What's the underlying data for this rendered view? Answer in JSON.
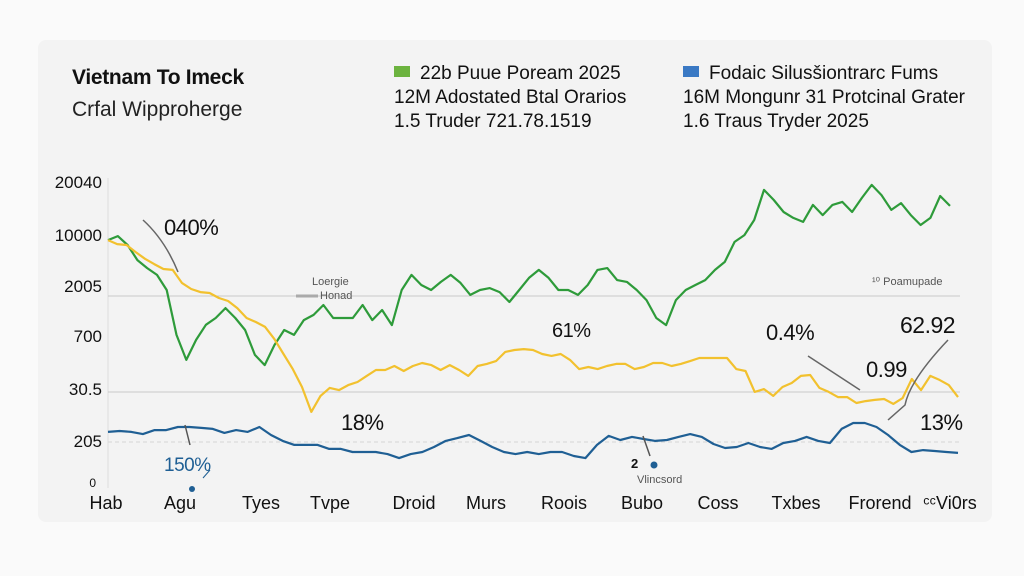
{
  "chart_data": {
    "type": "line",
    "title": "Vietnam To Imeck",
    "subtitle": "Crfal Wipproherge",
    "xlabel": "",
    "ylabel": "",
    "y_tick_labels": [
      "20040",
      "10000",
      "2005",
      "700",
      "30.5",
      "205",
      "0"
    ],
    "y_tick_positions": [
      95,
      80,
      63,
      48,
      30,
      14,
      0
    ],
    "ylim": [
      0,
      100
    ],
    "x_tick_labels": [
      "Hab",
      "Agu",
      "Tyes",
      "Tvpe",
      "Droid",
      "Murs",
      "Roois",
      "Bubo",
      "Coss",
      "Txbes",
      "Frorend",
      "ᶜᶜVi0rs"
    ],
    "grid": "horizontal reference lines at 2005, 30.5, 205",
    "legend_position": "top",
    "legend": [
      {
        "color": "#6cb33f",
        "lines": [
          "22b Puue Poream 2025",
          "12M Adostated Btal Orarios",
          "1.5 Truder 721.78.1519"
        ]
      },
      {
        "color": "#3a79c4",
        "lines": [
          "Fodaic Silusšiontrarc Fums",
          "16M Mongunr 31 Protcinal Grater",
          "1.6 Traus Tryder 2025"
        ]
      }
    ],
    "series": [
      {
        "name": "green",
        "color": "#2e9b3a",
        "values": [
          80.5,
          81.8,
          78.9,
          74,
          71.4,
          69.2,
          64.3,
          49.7,
          41.6,
          48.1,
          53,
          55.2,
          58.4,
          55.2,
          51.3,
          43.2,
          39.9,
          46.4,
          51.3,
          49.7,
          54.5,
          56.2,
          59.4,
          55.2,
          55.2,
          55.2,
          59.4,
          54.5,
          57.8,
          52.9,
          64.3,
          69.2,
          65.9,
          64.3,
          66.9,
          69.2,
          66.6,
          62.7,
          64.3,
          64.9,
          63.6,
          60.4,
          64.3,
          68.2,
          70.8,
          68.2,
          64.3,
          64.3,
          62.7,
          65.9,
          70.8,
          71.4,
          67.5,
          66.9,
          64.3,
          61,
          55.2,
          52.9,
          61,
          64.3,
          65.9,
          67.5,
          70.8,
          73.4,
          79.9,
          82.1,
          87,
          96.8,
          93.5,
          89.6,
          87.7,
          86.4,
          91.9,
          88.6,
          91.9,
          92.9,
          89.6,
          94.2,
          98.4,
          95.1,
          90.3,
          92.5,
          88.6,
          85.4,
          87.7,
          94.8,
          91.6
        ]
      },
      {
        "name": "yellow",
        "color": "#f2c12e",
        "values": [
          80.5,
          79.2,
          78.9,
          76.6,
          74.4,
          72.7,
          71.1,
          70.8,
          66.6,
          64.6,
          63.6,
          63.3,
          61.7,
          60.7,
          58.4,
          55.2,
          53.9,
          52.3,
          48.4,
          43.5,
          38.6,
          32.8,
          24.7,
          29.9,
          32.5,
          31.8,
          33.4,
          34.4,
          36.4,
          38.3,
          38.3,
          39.6,
          38,
          39.6,
          40.6,
          39.9,
          38.3,
          39.9,
          38.3,
          36.4,
          39.6,
          40.3,
          41.2,
          44.2,
          44.8,
          45.1,
          44.8,
          43.5,
          42.9,
          43.5,
          41.6,
          38.6,
          39.3,
          38.6,
          39.6,
          40.3,
          40.3,
          38.6,
          39.3,
          40.6,
          40.6,
          39.6,
          40.3,
          41.2,
          42.2,
          42.2,
          42.2,
          42.2,
          38.6,
          38,
          31.2,
          32.1,
          29.9,
          32.8,
          34.1,
          36.4,
          36.7,
          32.5,
          31.2,
          29.5,
          29.5,
          27.6,
          28.2,
          28.6,
          28.9,
          27.3,
          29.2,
          35.4,
          31.8,
          36.4,
          35.1,
          33.4,
          29.5
        ]
      },
      {
        "name": "blue",
        "color": "#1f5f94",
        "values": [
          18.2,
          18.5,
          18.2,
          17.5,
          18.8,
          18.8,
          19.8,
          19.8,
          19.5,
          19.2,
          17.9,
          18.8,
          18.2,
          19.8,
          17.2,
          15.3,
          14,
          14,
          14,
          12.7,
          12.7,
          11.7,
          11.7,
          11.7,
          11,
          9.7,
          11,
          11.7,
          13.3,
          15.3,
          16.2,
          17.2,
          15.3,
          13.3,
          11.7,
          11,
          11.7,
          11,
          11.7,
          11.7,
          10.4,
          9.7,
          14,
          16.9,
          15.6,
          16.6,
          15.9,
          15.3,
          15.6,
          16.6,
          17.5,
          16.6,
          14.3,
          13,
          13.3,
          14.6,
          13.3,
          12.7,
          14.6,
          15.3,
          16.6,
          15.3,
          14.6,
          19.2,
          21.1,
          21.1,
          19.8,
          17.2,
          14,
          11.7,
          12.3,
          12,
          11.7,
          11.4
        ]
      }
    ],
    "annotations": [
      {
        "text": "040%",
        "series": "green"
      },
      {
        "text": "18%",
        "series": "yellow"
      },
      {
        "text": "150%",
        "series": "blue"
      },
      {
        "text": "61%",
        "series": "yellow"
      },
      {
        "text": "0.4%",
        "series": "yellow"
      },
      {
        "text": "0.99",
        "series": "yellow"
      },
      {
        "text": "62.92",
        "series": "blue"
      },
      {
        "text": "13%",
        "series": "blue"
      },
      {
        "text": "2",
        "series": "blue"
      },
      {
        "text": "Vlincsord",
        "series": "blue"
      },
      {
        "text": "Loergie",
        "series": ""
      },
      {
        "text": "Honad",
        "series": ""
      },
      {
        "text": "¹⁰ Poamupade",
        "series": ""
      }
    ]
  }
}
